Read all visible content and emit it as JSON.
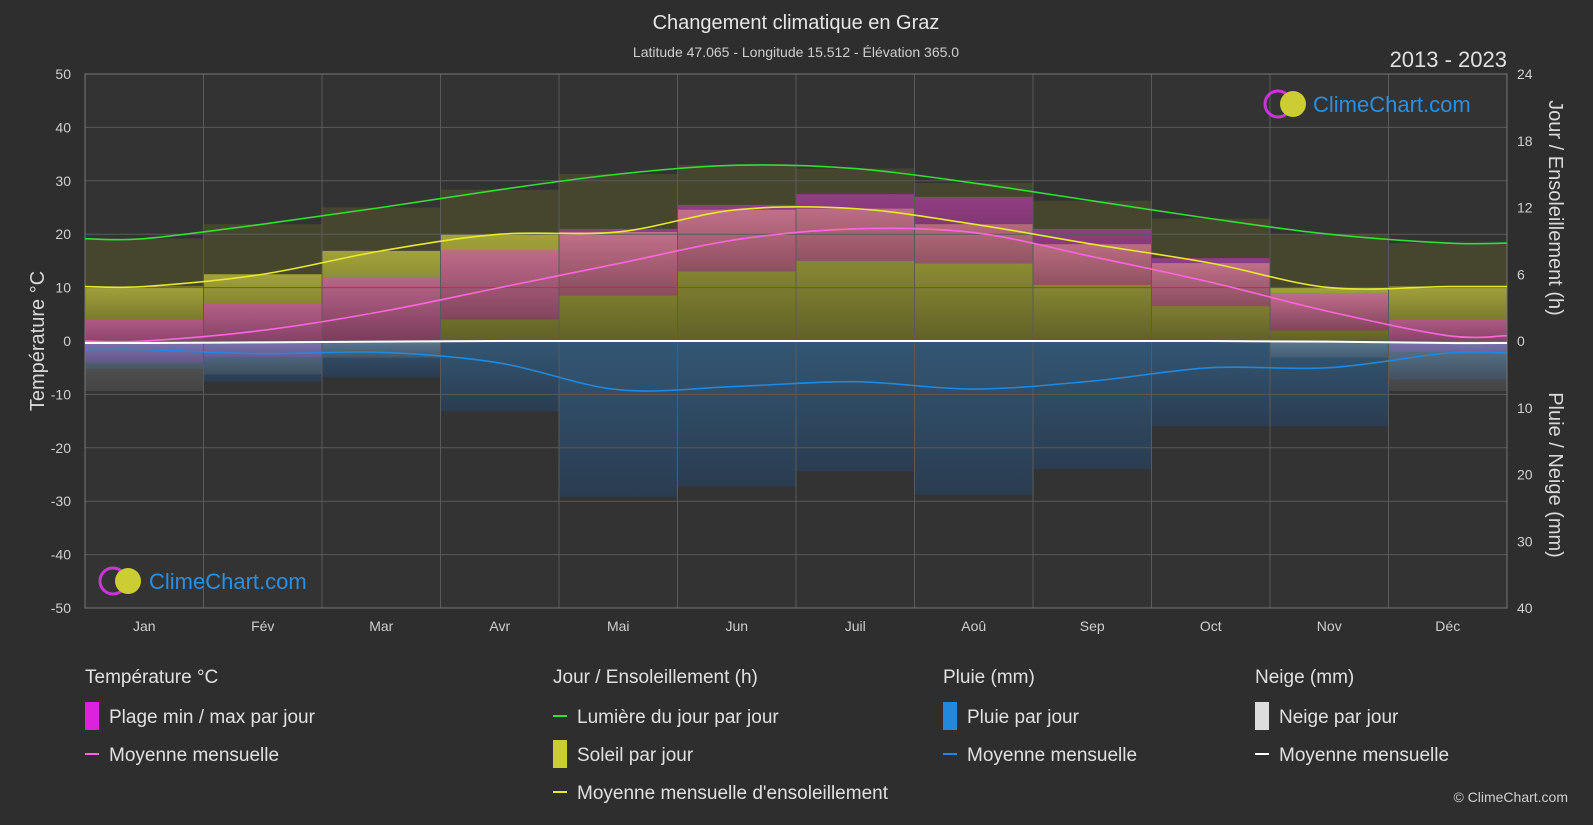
{
  "chart_data": {
    "type": "area",
    "title": "Changement climatique en Graz",
    "subtitle": "Latitude 47.065 - Longitude 15.512 - Élévation 365.0",
    "period": "2013 - 2023",
    "categories": [
      "Jan",
      "Fév",
      "Mar",
      "Avr",
      "Mai",
      "Jun",
      "Juil",
      "Aoû",
      "Sep",
      "Oct",
      "Nov",
      "Déc"
    ],
    "y_left": {
      "label": "Température °C",
      "range": [
        -50,
        50
      ],
      "ticks": [
        50,
        40,
        30,
        20,
        10,
        0,
        -10,
        -20,
        -30,
        -40,
        -50
      ]
    },
    "y_right_top": {
      "label": "Jour / Ensoleillement (h)",
      "range": [
        0,
        24
      ],
      "ticks": [
        24,
        18,
        12,
        6,
        0
      ]
    },
    "y_right_bottom": {
      "label": "Pluie / Neige (mm)",
      "range": [
        0,
        40
      ],
      "ticks": [
        10,
        20,
        30,
        40
      ]
    },
    "series": [
      {
        "name": "Lumière du jour par jour",
        "axis": "hours",
        "color": "#33dd33",
        "values": [
          9.2,
          10.5,
          12.0,
          13.6,
          15.0,
          15.8,
          15.5,
          14.2,
          12.6,
          11.0,
          9.6,
          8.8
        ]
      },
      {
        "name": "Moyenne mensuelle d'ensoleillement",
        "axis": "hours",
        "color": "#e8e830",
        "values": [
          4.9,
          6.0,
          8.1,
          9.6,
          9.8,
          11.8,
          11.9,
          10.5,
          8.7,
          7.0,
          4.8,
          4.9
        ]
      },
      {
        "name": "Soleil par jour",
        "axis": "hours",
        "color": "#a0a020",
        "values": [
          4.9,
          6.0,
          8.1,
          9.6,
          9.8,
          11.8,
          11.9,
          10.5,
          8.7,
          7.0,
          4.8,
          4.9
        ]
      },
      {
        "name": "Moyenne mensuelle (température)",
        "axis": "temperature",
        "color": "#ff66dd",
        "values": [
          0.0,
          2.0,
          5.5,
          10.0,
          14.5,
          19.0,
          21.0,
          20.3,
          15.8,
          11.0,
          5.5,
          1.0
        ]
      },
      {
        "name": "Plage min / max par jour (max)",
        "axis": "temperature",
        "color": "#cc44aa",
        "values": [
          4.0,
          7.0,
          12.0,
          17.0,
          21.0,
          25.5,
          27.5,
          27.0,
          21.0,
          15.5,
          9.0,
          4.0
        ]
      },
      {
        "name": "Plage min / max par jour (min)",
        "axis": "temperature",
        "color": "#cc44aa",
        "values": [
          -4.0,
          -3.0,
          0.0,
          4.0,
          8.5,
          13.0,
          15.0,
          14.5,
          10.5,
          6.5,
          2.0,
          -2.0
        ]
      },
      {
        "name": "Moyenne mensuelle (pluie)",
        "axis": "precip",
        "color": "#2288dd",
        "values": [
          1.3,
          1.9,
          1.7,
          3.3,
          7.3,
          6.8,
          6.1,
          7.2,
          6.0,
          4.0,
          4.0,
          1.8
        ]
      },
      {
        "name": "Moyenne mensuelle (neige)",
        "axis": "precip",
        "color": "#ffffff",
        "values": [
          0.3,
          0.2,
          0.1,
          0.0,
          0.0,
          0.0,
          0.0,
          0.0,
          0.0,
          0.0,
          0.1,
          0.3
        ]
      }
    ],
    "legend": {
      "groups": [
        {
          "title": "Température °C",
          "items": [
            {
              "label": "Plage min / max par jour",
              "swatch": "block",
              "color": "#dd22dd"
            },
            {
              "label": "Moyenne mensuelle",
              "swatch": "line",
              "color": "#ff66dd"
            }
          ]
        },
        {
          "title": "Jour / Ensoleillement (h)",
          "items": [
            {
              "label": "Lumière du jour par jour",
              "swatch": "line",
              "color": "#33dd33"
            },
            {
              "label": "Soleil par jour",
              "swatch": "block",
              "color": "#cccc33"
            },
            {
              "label": "Moyenne mensuelle d'ensoleillement",
              "swatch": "line",
              "color": "#e8e830"
            }
          ]
        },
        {
          "title": "Pluie (mm)",
          "items": [
            {
              "label": "Pluie par jour",
              "swatch": "block",
              "color": "#2288dd"
            },
            {
              "label": "Moyenne mensuelle",
              "swatch": "line",
              "color": "#2288dd"
            }
          ]
        },
        {
          "title": "Neige (mm)",
          "items": [
            {
              "label": "Neige par jour",
              "swatch": "block",
              "color": "#dddddd"
            },
            {
              "label": "Moyenne mensuelle",
              "swatch": "line",
              "color": "#ffffff"
            }
          ]
        }
      ]
    },
    "grid": true
  },
  "brand": {
    "name": "ClimeChart.com",
    "copyright": "© ClimeChart.com"
  }
}
